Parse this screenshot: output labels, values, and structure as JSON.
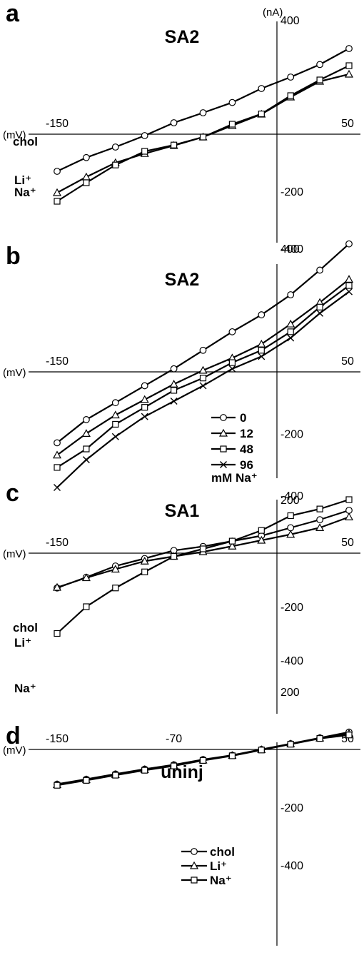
{
  "chart_data": [
    {
      "panel": "a",
      "type": "line",
      "title": "SA2",
      "x_unit": "(mV)",
      "y_unit": "(nA)",
      "x_tick_labels": [
        "-150",
        "50"
      ],
      "y_tick_labels": [
        "400",
        "-200",
        "-400"
      ],
      "xlim": [
        -150,
        50
      ],
      "ylim": [
        -440,
        470
      ],
      "x": [
        -150,
        -140,
        -130,
        -120,
        -110,
        -100,
        -90,
        -80,
        -70,
        -60,
        -50,
        -40,
        -30,
        -20,
        -10,
        0,
        10,
        20,
        30,
        40,
        50
      ],
      "series": [
        {
          "name": "chol",
          "marker": "circle",
          "values": [
            -130,
            null,
            -82,
            null,
            -45,
            null,
            -5,
            null,
            40,
            null,
            75,
            null,
            111,
            null,
            160,
            null,
            200,
            null,
            244,
            null,
            300
          ]
        },
        {
          "name": "Li⁺",
          "marker": "triangle",
          "values": [
            -205,
            null,
            -150,
            null,
            -100,
            null,
            -68,
            null,
            -40,
            null,
            -10,
            null,
            30,
            null,
            70,
            null,
            130,
            null,
            185,
            null,
            210
          ]
        },
        {
          "name": "Na⁺",
          "marker": "square",
          "values": [
            -235,
            null,
            -170,
            null,
            -108,
            null,
            -60,
            null,
            -38,
            null,
            -10,
            null,
            35,
            null,
            71,
            null,
            135,
            null,
            190,
            null,
            240
          ]
        }
      ]
    },
    {
      "panel": "b",
      "type": "line",
      "title": "SA2",
      "x_unit": "(mV)",
      "x_tick_labels": [
        "-150",
        "50"
      ],
      "y_tick_labels": [
        "400",
        "-200",
        "-400"
      ],
      "xlim": [
        -150,
        50
      ],
      "ylim": [
        -480,
        480
      ],
      "x": [
        -150,
        -140,
        -130,
        -120,
        -110,
        -100,
        -90,
        -80,
        -70,
        -60,
        -50,
        -40,
        -30,
        -20,
        -10,
        0,
        10,
        20,
        30,
        40,
        50
      ],
      "series": [
        {
          "name": "0",
          "marker": "circle",
          "values": [
            -230,
            null,
            -155,
            null,
            -100,
            null,
            -45,
            null,
            10,
            null,
            70,
            null,
            130,
            null,
            185,
            null,
            250,
            null,
            330,
            null,
            415
          ]
        },
        {
          "name": "12",
          "marker": "triangle",
          "values": [
            -270,
            null,
            -200,
            null,
            -140,
            null,
            -90,
            null,
            -40,
            null,
            5,
            null,
            45,
            null,
            90,
            null,
            155,
            null,
            225,
            null,
            300
          ]
        },
        {
          "name": "48",
          "marker": "square",
          "values": [
            -310,
            null,
            -250,
            null,
            -170,
            null,
            -115,
            null,
            -60,
            null,
            -20,
            null,
            30,
            null,
            70,
            null,
            130,
            null,
            210,
            null,
            280
          ]
        },
        {
          "name": "96",
          "marker": "cross",
          "values": [
            -375,
            null,
            -285,
            null,
            -210,
            null,
            -145,
            null,
            -95,
            null,
            -45,
            null,
            10,
            null,
            50,
            null,
            110,
            null,
            190,
            null,
            260
          ]
        }
      ]
    },
    {
      "panel": "c",
      "type": "line",
      "title": "SA1",
      "x_unit": "(mV)",
      "x_tick_labels": [
        "-150",
        "50"
      ],
      "y_tick_labels": [
        "200",
        "-200",
        "-400"
      ],
      "xlim": [
        -150,
        50
      ],
      "ylim": [
        -400,
        310
      ],
      "x": [
        -150,
        -140,
        -130,
        -120,
        -110,
        -100,
        -90,
        -80,
        -70,
        -60,
        -50,
        -40,
        -30,
        -20,
        -10,
        0,
        10,
        20,
        30,
        40,
        50
      ],
      "series": [
        {
          "name": "chol",
          "marker": "circle",
          "values": [
            -130,
            null,
            -90,
            null,
            -48,
            null,
            -20,
            null,
            10,
            null,
            25,
            null,
            45,
            null,
            65,
            null,
            95,
            null,
            125,
            null,
            160
          ]
        },
        {
          "name": "Li⁺",
          "marker": "triangle",
          "values": [
            -128,
            null,
            -92,
            null,
            -60,
            null,
            -30,
            null,
            -12,
            null,
            5,
            null,
            26,
            null,
            48,
            null,
            70,
            null,
            95,
            null,
            135
          ]
        },
        {
          "name": "Na⁺",
          "marker": "square",
          "values": [
            -300,
            null,
            -200,
            null,
            -130,
            null,
            -70,
            null,
            -12,
            null,
            16,
            null,
            45,
            null,
            85,
            null,
            140,
            null,
            165,
            null,
            200
          ]
        }
      ]
    },
    {
      "panel": "d",
      "type": "line",
      "title": "uninj",
      "x_unit": "(mV)",
      "x_tick_labels": [
        "-150",
        "-70",
        "50"
      ],
      "y_tick_labels": [
        "200",
        "-200",
        "-400"
      ],
      "xlim": [
        -150,
        50
      ],
      "ylim": [
        -420,
        340
      ],
      "x": [
        -150,
        -140,
        -130,
        -120,
        -110,
        -100,
        -90,
        -80,
        -70,
        -60,
        -50,
        -40,
        -30,
        -20,
        -10,
        0,
        10,
        20,
        30,
        40,
        50
      ],
      "legend_title": "",
      "series": [
        {
          "name": "chol",
          "marker": "circle",
          "values": [
            -120,
            null,
            -103,
            null,
            -85,
            null,
            -68,
            null,
            -53,
            null,
            -35,
            null,
            -20,
            null,
            0,
            null,
            20,
            null,
            40,
            null,
            60
          ]
        },
        {
          "name": "Li⁺",
          "marker": "triangle",
          "values": [
            -122,
            null,
            -105,
            null,
            -87,
            null,
            -70,
            null,
            -55,
            null,
            -37,
            null,
            -21,
            null,
            -1,
            null,
            19,
            null,
            39,
            null,
            55
          ]
        },
        {
          "name": "Na⁺",
          "marker": "square",
          "values": [
            -124,
            null,
            -107,
            null,
            -89,
            null,
            -72,
            null,
            -57,
            null,
            -38,
            null,
            -22,
            null,
            -2,
            null,
            18,
            null,
            38,
            null,
            50
          ]
        }
      ]
    }
  ],
  "panel_b_legend_caption": "mM Na⁺"
}
